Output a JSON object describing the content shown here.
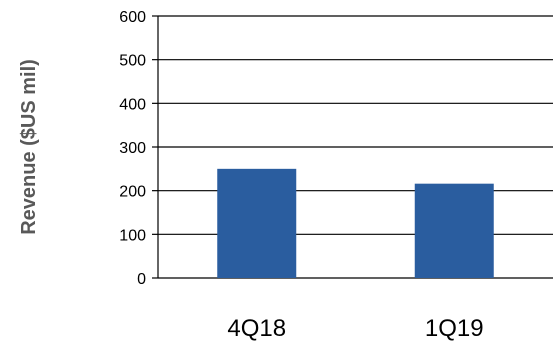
{
  "chart_data": {
    "type": "bar",
    "categories": [
      "4Q18",
      "1Q19"
    ],
    "values": [
      250,
      216
    ],
    "title": "",
    "xlabel": "",
    "ylabel": "Revenue ($US mil)",
    "ylim": [
      0,
      600
    ],
    "yticks": [
      0,
      100,
      200,
      300,
      400,
      500,
      600
    ],
    "grid": true,
    "legend": "none",
    "colors": {
      "bar": "#2a5d9f",
      "grid": "#000000",
      "axis_title": "#595959"
    }
  }
}
